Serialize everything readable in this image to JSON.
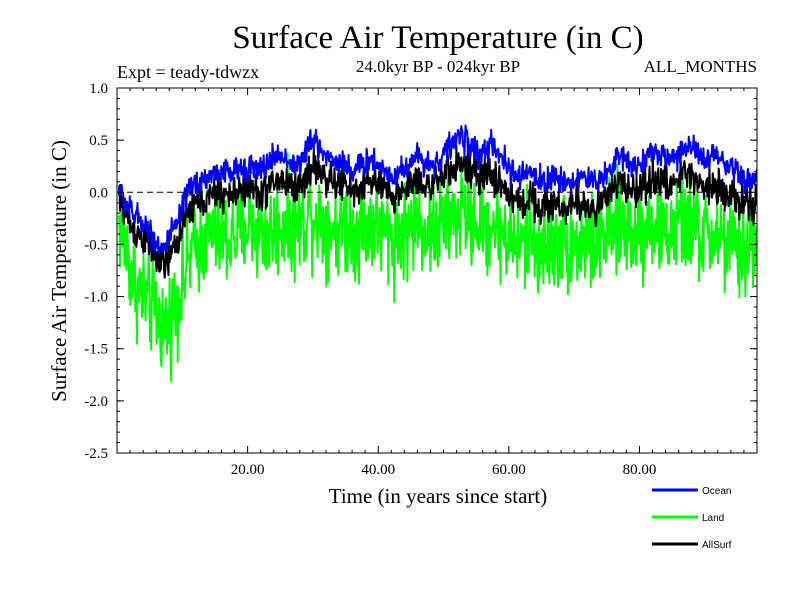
{
  "chart_data": {
    "type": "line",
    "title": "Surface Air Temperature (in C)",
    "subtitle": "24.0kyr BP - 024kyr BP",
    "experiment": "Expt = teady-tdwzx",
    "period": "ALL_MONTHS",
    "xlabel": "Time (in years since start)",
    "ylabel": "Surface Air Temperature (in C)",
    "xlim": [
      0,
      98
    ],
    "ylim": [
      -2.5,
      1.0
    ],
    "x_ticks": [
      20,
      40,
      60,
      80
    ],
    "x_tick_labels": [
      "20.00",
      "40.00",
      "60.00",
      "80.00"
    ],
    "y_ticks": [
      -2.5,
      -2.0,
      -1.5,
      -1.0,
      -0.5,
      0.0,
      0.5,
      1.0
    ],
    "y_tick_labels": [
      "-2.5",
      "-2.0",
      "-1.5",
      "-1.0",
      "-0.5",
      "0.0",
      "0.5",
      "1.0"
    ],
    "reference_line": 0.0,
    "samples_per_year": 12,
    "series": [
      {
        "name": "Ocean",
        "color": "#0000ff",
        "noise": 0.09,
        "values": [
          0.05,
          -0.1,
          -0.2,
          -0.25,
          -0.3,
          -0.4,
          -0.5,
          -0.55,
          -0.4,
          -0.3,
          -0.1,
          0.05,
          0.1,
          0.12,
          0.15,
          0.2,
          0.2,
          0.18,
          0.2,
          0.25,
          0.25,
          0.2,
          0.22,
          0.3,
          0.35,
          0.35,
          0.3,
          0.25,
          0.3,
          0.45,
          0.5,
          0.4,
          0.35,
          0.3,
          0.3,
          0.25,
          0.2,
          0.25,
          0.3,
          0.3,
          0.25,
          0.2,
          0.15,
          0.2,
          0.25,
          0.3,
          0.35,
          0.3,
          0.25,
          0.3,
          0.4,
          0.45,
          0.55,
          0.5,
          0.45,
          0.35,
          0.4,
          0.45,
          0.35,
          0.3,
          0.2,
          0.15,
          0.15,
          0.2,
          0.15,
          0.1,
          0.12,
          0.15,
          0.1,
          0.1,
          0.12,
          0.15,
          0.1,
          0.1,
          0.15,
          0.2,
          0.3,
          0.35,
          0.3,
          0.25,
          0.3,
          0.35,
          0.4,
          0.35,
          0.3,
          0.35,
          0.4,
          0.45,
          0.4,
          0.35,
          0.3,
          0.35,
          0.3,
          0.25,
          0.2,
          0.15,
          0.12,
          0.1,
          0.1
        ]
      },
      {
        "name": "Land",
        "color": "#00ff00",
        "noise": 0.33,
        "values": [
          -0.3,
          -0.5,
          -0.8,
          -0.95,
          -1.0,
          -1.1,
          -1.2,
          -1.3,
          -1.2,
          -1.0,
          -0.8,
          -0.6,
          -0.5,
          -0.45,
          -0.4,
          -0.4,
          -0.45,
          -0.45,
          -0.4,
          -0.35,
          -0.3,
          -0.35,
          -0.4,
          -0.4,
          -0.35,
          -0.3,
          -0.3,
          -0.35,
          -0.3,
          -0.2,
          -0.2,
          -0.25,
          -0.3,
          -0.35,
          -0.3,
          -0.3,
          -0.35,
          -0.35,
          -0.3,
          -0.3,
          -0.35,
          -0.4,
          -0.45,
          -0.4,
          -0.35,
          -0.3,
          -0.3,
          -0.35,
          -0.4,
          -0.35,
          -0.3,
          -0.25,
          -0.2,
          -0.2,
          -0.25,
          -0.3,
          -0.3,
          -0.3,
          -0.35,
          -0.4,
          -0.45,
          -0.5,
          -0.5,
          -0.45,
          -0.5,
          -0.55,
          -0.5,
          -0.5,
          -0.45,
          -0.5,
          -0.5,
          -0.45,
          -0.5,
          -0.5,
          -0.45,
          -0.4,
          -0.35,
          -0.3,
          -0.35,
          -0.4,
          -0.35,
          -0.3,
          -0.3,
          -0.35,
          -0.4,
          -0.35,
          -0.3,
          -0.3,
          -0.35,
          -0.4,
          -0.45,
          -0.4,
          -0.45,
          -0.5,
          -0.55,
          -0.6,
          -0.55,
          -0.5,
          -0.5
        ]
      },
      {
        "name": "AllSurf",
        "color": "#000000",
        "noise": 0.12,
        "values": [
          -0.05,
          -0.2,
          -0.35,
          -0.4,
          -0.45,
          -0.55,
          -0.65,
          -0.7,
          -0.6,
          -0.45,
          -0.3,
          -0.15,
          -0.1,
          -0.08,
          -0.05,
          0.0,
          -0.02,
          -0.05,
          0.0,
          0.05,
          0.05,
          0.0,
          0.0,
          0.05,
          0.1,
          0.12,
          0.08,
          0.05,
          0.08,
          0.2,
          0.25,
          0.18,
          0.12,
          0.08,
          0.1,
          0.05,
          0.0,
          0.05,
          0.1,
          0.1,
          0.05,
          0.0,
          -0.05,
          0.0,
          0.05,
          0.1,
          0.12,
          0.08,
          0.05,
          0.1,
          0.18,
          0.22,
          0.3,
          0.25,
          0.2,
          0.12,
          0.15,
          0.18,
          0.1,
          0.05,
          -0.05,
          -0.1,
          -0.1,
          -0.05,
          -0.1,
          -0.15,
          -0.12,
          -0.1,
          -0.15,
          -0.15,
          -0.12,
          -0.1,
          -0.15,
          -0.15,
          -0.1,
          -0.05,
          0.05,
          0.1,
          0.05,
          0.0,
          0.05,
          0.1,
          0.15,
          0.1,
          0.05,
          0.1,
          0.15,
          0.2,
          0.15,
          0.1,
          0.05,
          0.1,
          0.05,
          0.0,
          -0.05,
          -0.1,
          -0.1,
          -0.12,
          -0.12
        ]
      }
    ]
  }
}
